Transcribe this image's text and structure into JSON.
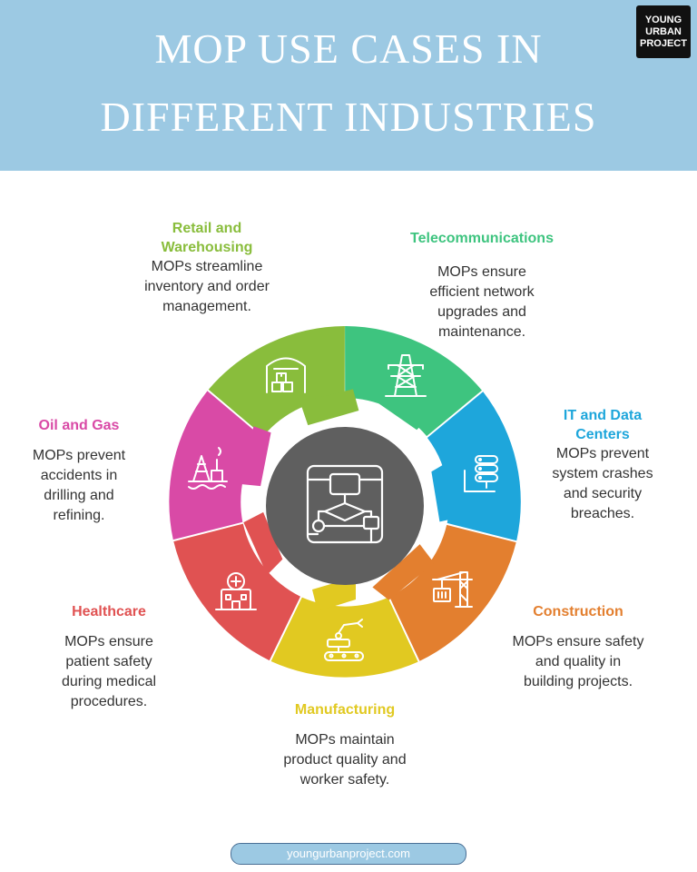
{
  "title": {
    "line1": "MOP USE CASES IN",
    "line2": "DIFFERENT INDUSTRIES"
  },
  "logo": {
    "line1": "YOUNG",
    "line2": "URBAN",
    "line3": "PROJECT"
  },
  "center": {
    "icon": "flowchart-icon"
  },
  "segments": [
    {
      "label": "Telecommunications",
      "description": "MOPs ensure efficient network upgrades and maintenance.",
      "color": "#3ec47f",
      "icon": "transmission-tower-icon"
    },
    {
      "label": "IT and Data Centers",
      "description": "MOPs prevent system crashes and security breaches.",
      "color": "#1ea6db",
      "icon": "server-stack-icon"
    },
    {
      "label": "Construction",
      "description": "MOPs ensure safety and quality in building projects.",
      "color": "#e37f2f",
      "icon": "crane-icon"
    },
    {
      "label": "Manufacturing",
      "description": "MOPs maintain product quality and worker safety.",
      "color": "#e1c921",
      "icon": "robot-arm-conveyor-icon"
    },
    {
      "label": "Healthcare",
      "description": "MOPs ensure patient safety during medical procedures.",
      "color": "#e05252",
      "icon": "hospital-icon"
    },
    {
      "label": "Oil and Gas",
      "description": "MOPs prevent accidents in drilling and refining.",
      "color": "#d94aa6",
      "icon": "oil-rig-icon"
    },
    {
      "label": "Retail and Warehousing",
      "description": "MOPs streamline inventory and order management.",
      "color": "#89bd3c",
      "icon": "warehouse-icon"
    }
  ],
  "footer": {
    "url": "youngurbanproject.com"
  }
}
